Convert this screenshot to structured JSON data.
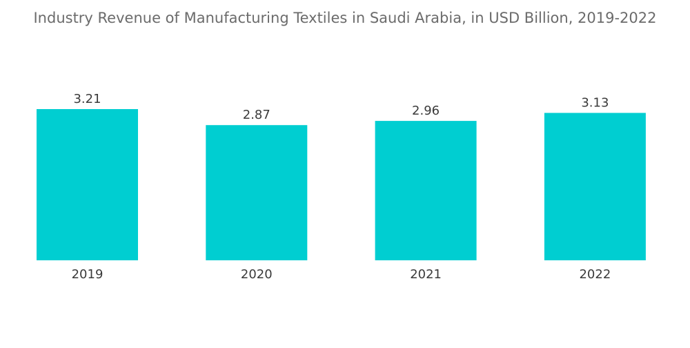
{
  "chart_data": {
    "type": "bar",
    "title": "Industry Revenue of Manufacturing Textiles in Saudi Arabia, in USD Billion, 2019-2022",
    "xlabel": "",
    "ylabel": "",
    "categories": [
      "2019",
      "2020",
      "2021",
      "2022"
    ],
    "series": [
      {
        "values": [
          3.21,
          2.87,
          2.96,
          3.13
        ],
        "color": "#00CED1"
      }
    ],
    "data_labels": [
      "3.21",
      "2.87",
      "2.96",
      "3.13"
    ],
    "ylim": [
      0,
      3.21
    ],
    "grid": false,
    "legend": "none"
  }
}
